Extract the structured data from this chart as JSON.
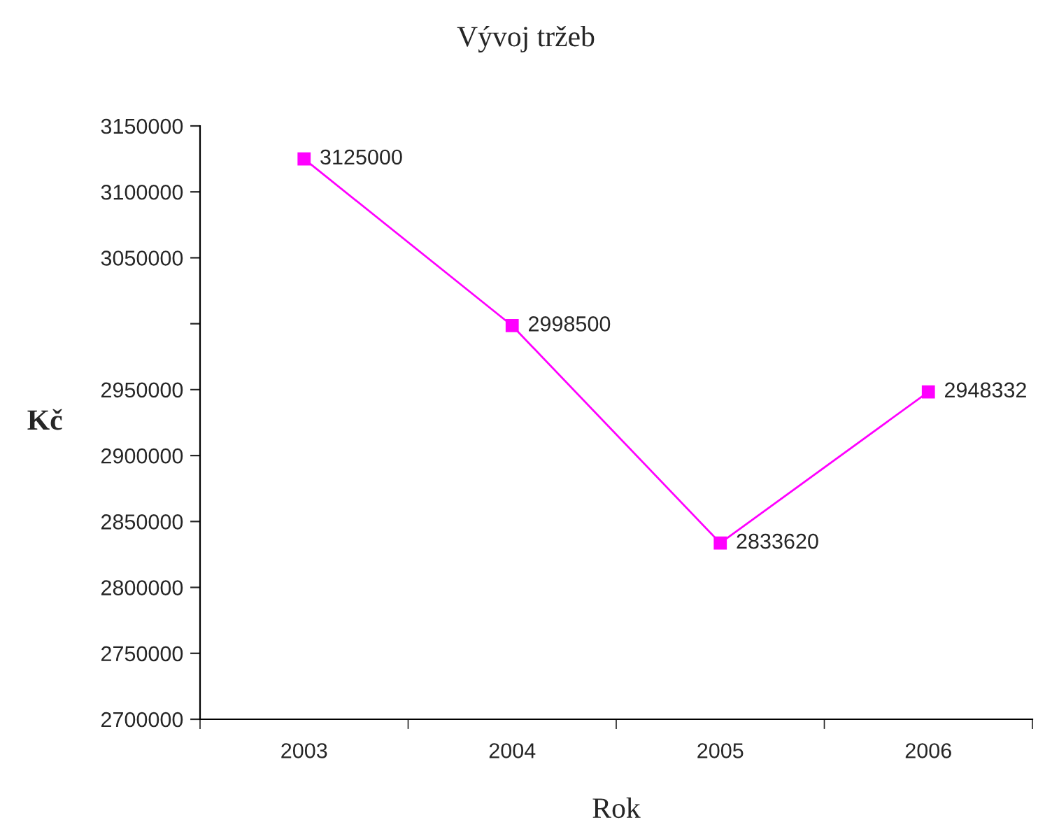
{
  "chart_data": {
    "type": "line",
    "title": "Vývoj tržeb",
    "xlabel": "Rok",
    "ylabel": "Kč",
    "categories": [
      "2003",
      "2004",
      "2005",
      "2006"
    ],
    "series": [
      {
        "color": "#ff00ff",
        "values": [
          3125000,
          2998500,
          2833620,
          2948332
        ]
      }
    ],
    "ylim": [
      2700000,
      3150000
    ],
    "yticks": [
      2700000,
      2750000,
      2800000,
      2850000,
      2900000,
      2950000,
      {
        "value": 3000000,
        "label": null
      },
      3050000,
      3100000,
      3150000
    ],
    "marker": "square",
    "line_style": "solid",
    "data_labels": true,
    "grid": false,
    "legend": false
  }
}
